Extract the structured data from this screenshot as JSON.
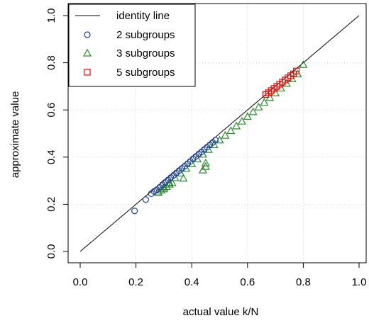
{
  "chart_data": {
    "type": "scatter",
    "xlabel": "actual value k/N",
    "ylabel": "approximate value",
    "xlim": [
      0.0,
      1.0
    ],
    "ylim": [
      0.0,
      1.0
    ],
    "x_ticks": [
      "0.0",
      "0.2",
      "0.4",
      "0.6",
      "0.8",
      "1.0"
    ],
    "y_ticks": [
      "0.0",
      "0.2",
      "0.4",
      "0.6",
      "0.8",
      "1.0"
    ],
    "grid": true,
    "legend_position": "top-left",
    "identity_line": {
      "name": "identity line",
      "from": [
        0,
        0
      ],
      "to": [
        1,
        1
      ],
      "color": "#000000"
    },
    "series": [
      {
        "name": "2 subgroups",
        "marker": "circle",
        "color": "#1f3f9f",
        "x": [
          0.195,
          0.235,
          0.255,
          0.265,
          0.275,
          0.285,
          0.295,
          0.305,
          0.315,
          0.325,
          0.335,
          0.345,
          0.355,
          0.365,
          0.375,
          0.385,
          0.395,
          0.405,
          0.415,
          0.425,
          0.435,
          0.445,
          0.455,
          0.465,
          0.475,
          0.485
        ],
        "y": [
          0.172,
          0.22,
          0.245,
          0.255,
          0.262,
          0.272,
          0.283,
          0.293,
          0.303,
          0.313,
          0.323,
          0.333,
          0.343,
          0.352,
          0.362,
          0.372,
          0.382,
          0.393,
          0.403,
          0.413,
          0.422,
          0.432,
          0.442,
          0.452,
          0.462,
          0.472
        ]
      },
      {
        "name": "3 subgroups",
        "marker": "triangle",
        "color": "#2e8b2e",
        "x": [
          0.28,
          0.29,
          0.3,
          0.31,
          0.32,
          0.33,
          0.37,
          0.44,
          0.45,
          0.45,
          0.28,
          0.3,
          0.32,
          0.34,
          0.36,
          0.38,
          0.4,
          0.42,
          0.44,
          0.46,
          0.48,
          0.5,
          0.52,
          0.54,
          0.56,
          0.58,
          0.6,
          0.62,
          0.64,
          0.66,
          0.68,
          0.7,
          0.72,
          0.74,
          0.76,
          0.78,
          0.8
        ],
        "y": [
          0.25,
          0.26,
          0.265,
          0.275,
          0.285,
          0.29,
          0.31,
          0.345,
          0.36,
          0.375,
          0.252,
          0.272,
          0.292,
          0.312,
          0.332,
          0.352,
          0.372,
          0.392,
          0.412,
          0.432,
          0.452,
          0.472,
          0.492,
          0.512,
          0.532,
          0.552,
          0.572,
          0.592,
          0.612,
          0.632,
          0.652,
          0.672,
          0.692,
          0.712,
          0.732,
          0.752,
          0.792
        ]
      },
      {
        "name": "5 subgroups",
        "marker": "square",
        "color": "#ff0000",
        "x": [
          0.665,
          0.675,
          0.685,
          0.695,
          0.705,
          0.715,
          0.725,
          0.735,
          0.745,
          0.755,
          0.765,
          0.775
        ],
        "y": [
          0.665,
          0.673,
          0.682,
          0.691,
          0.7,
          0.709,
          0.718,
          0.727,
          0.736,
          0.745,
          0.753,
          0.765
        ]
      }
    ]
  }
}
